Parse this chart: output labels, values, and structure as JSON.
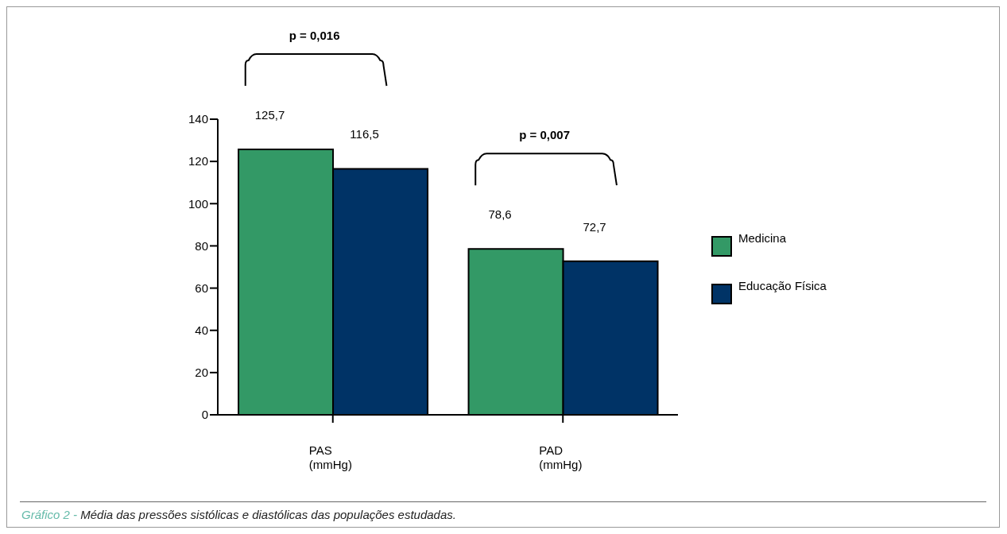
{
  "chart_data": {
    "type": "bar",
    "categories": [
      "PAS (mmHg)",
      "PAD (mmHg)"
    ],
    "series": [
      {
        "name": "Medicina",
        "color": "#339966",
        "values": [
          125.7,
          78.6
        ],
        "value_labels": [
          "125,7",
          "78,6"
        ]
      },
      {
        "name": "Educação Física",
        "color": "#003366",
        "values": [
          116.5,
          72.7
        ],
        "value_labels": [
          "116,5",
          "72,7"
        ]
      }
    ],
    "ylim": [
      0,
      140
    ],
    "yticks": [
      0,
      20,
      40,
      60,
      80,
      100,
      120,
      140
    ],
    "grid": false,
    "legend": "right",
    "annotations": [
      "p = 0,016",
      "p = 0,007",
      "Gráfico 2 -",
      "Média das pressões sistólicas e diastólicas das populações estudadas."
    ]
  }
}
